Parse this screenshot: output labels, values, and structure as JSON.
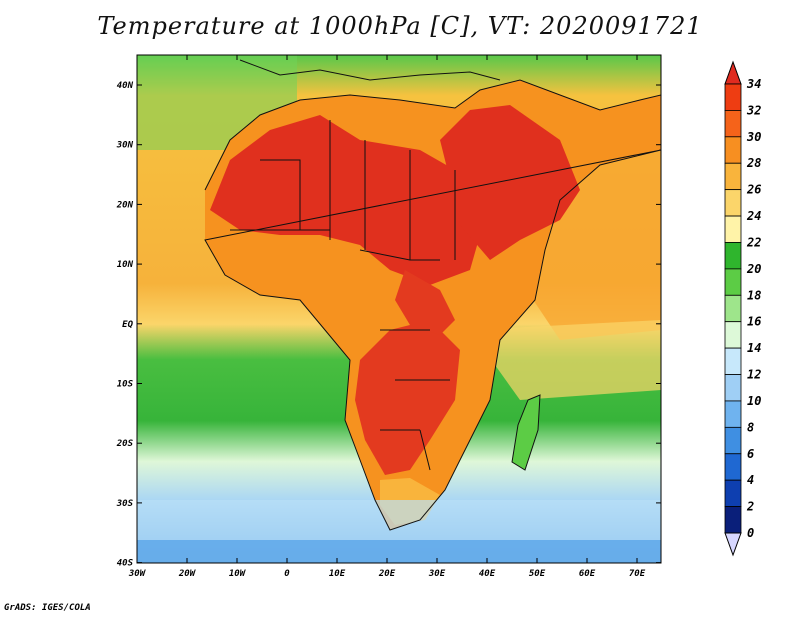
{
  "title": "Temperature at 1000hPa [C], VT: 2020091721",
  "footer": "GrADS: IGES/COLA",
  "map": {
    "lon_labels": [
      "30W",
      "20W",
      "10W",
      "0",
      "10E",
      "20E",
      "30E",
      "40E",
      "50E",
      "60E",
      "70E"
    ],
    "lat_labels": [
      "40N",
      "30N",
      "20N",
      "10N",
      "EQ",
      "10S",
      "20S",
      "30S",
      "40S"
    ]
  },
  "colorbar": {
    "labels": [
      "34",
      "32",
      "30",
      "28",
      "26",
      "24",
      "22",
      "20",
      "18",
      "16",
      "14",
      "12",
      "10",
      "8",
      "6",
      "4",
      "2",
      "0"
    ],
    "colors": [
      "#e02b20",
      "#ee3d12",
      "#f5631a",
      "#f78f21",
      "#f9b43c",
      "#fbd56a",
      "#fff3a8",
      "#2fb52d",
      "#5ccc45",
      "#9ee58b",
      "#ddf9d8",
      "#c7e8fb",
      "#9fcff5",
      "#6fb3ef",
      "#3f8fe2",
      "#1f68d2",
      "#0e3fb0",
      "#0a1f7a",
      "#d7d7ff"
    ]
  }
}
